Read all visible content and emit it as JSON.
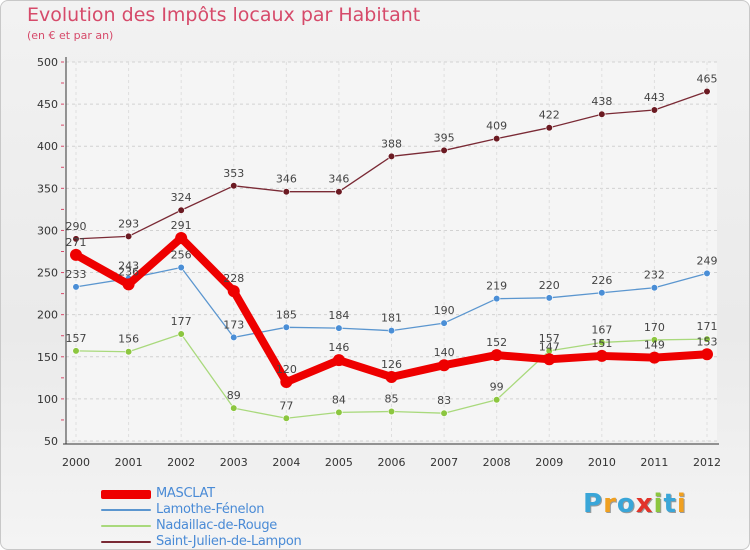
{
  "header": {
    "title": "Evolution des Impôts locaux par Habitant",
    "subtitle": "(en € et par an)"
  },
  "logo": {
    "text": "Proxiti",
    "colors": [
      "#3aa6d8",
      "#f0a020",
      "#3aa6d8",
      "#e2342a",
      "#8cc63f",
      "#3aa6d8",
      "#f0a020"
    ]
  },
  "chart_data": {
    "type": "line",
    "x": [
      "2000",
      "2001",
      "2002",
      "2003",
      "2004",
      "2005",
      "2006",
      "2007",
      "2008",
      "2009",
      "2010",
      "2011",
      "2012"
    ],
    "ylim": [
      50,
      500
    ],
    "yticks": [
      50,
      100,
      150,
      200,
      250,
      300,
      350,
      400,
      450,
      500
    ],
    "grid": true,
    "legend": "bottom-left",
    "series": [
      {
        "name": "MASCLAT",
        "color": "#ee0000",
        "emphasis": true,
        "values": [
          271,
          236,
          291,
          228,
          120,
          146,
          126,
          140,
          152,
          147,
          151,
          149,
          153
        ],
        "labels": [
          "271",
          "236",
          "291",
          "228",
          "120",
          "146",
          "126",
          "140",
          "152",
          "147",
          "151",
          "149",
          "153"
        ]
      },
      {
        "name": "Lamothe-Fénelon",
        "color": "#5b96cf",
        "point": "#4a8ed6",
        "values": [
          233,
          243,
          256,
          173,
          185,
          184,
          181,
          190,
          219,
          220,
          226,
          232,
          249
        ],
        "labels": [
          "233",
          "243",
          "256",
          "173",
          "185",
          "184",
          "181",
          "190",
          "219",
          "220",
          "226",
          "232",
          "249"
        ]
      },
      {
        "name": "Nadaillac-de-Rouge",
        "color": "#a9d97c",
        "point": "#8cc63f",
        "values": [
          157,
          156,
          177,
          89,
          77,
          84,
          85,
          83,
          99,
          157,
          167,
          170,
          171
        ],
        "labels": [
          "157",
          "156",
          "177",
          "89",
          "77",
          "84",
          "85",
          "83",
          "99",
          "157",
          "167",
          "170",
          "171"
        ]
      },
      {
        "name": "Saint-Julien-de-Lampon",
        "color": "#7a2a35",
        "point": "#6b1a22",
        "values": [
          290,
          293,
          324,
          353,
          346,
          346,
          388,
          395,
          409,
          422,
          438,
          443,
          465
        ],
        "labels": [
          "290",
          "293",
          "324",
          "353",
          "346",
          "346",
          "388",
          "395",
          "409",
          "422",
          "438",
          "443",
          "465"
        ]
      }
    ]
  }
}
